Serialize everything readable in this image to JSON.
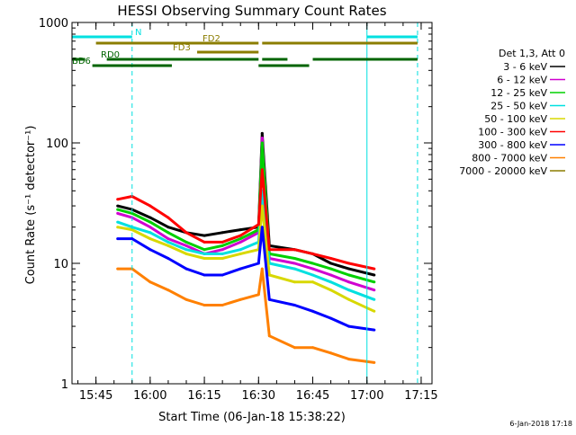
{
  "chart_data": {
    "type": "line",
    "title": "HESSI Observing Summary Count Rates",
    "xlabel": "Start Time (06-Jan-18 15:38:22)",
    "ylabel": "Count Rate (s⁻¹ detector⁻¹)",
    "x_scale": "time",
    "y_scale": "log",
    "xlim": [
      "15:38:22",
      "17:18:00"
    ],
    "ylim": [
      1,
      1000
    ],
    "x_ticks": [
      "15:45",
      "16:00",
      "16:15",
      "16:30",
      "16:45",
      "17:00",
      "17:15"
    ],
    "y_ticks": [
      "1",
      "10",
      "100",
      "1000"
    ],
    "grid": false,
    "legend_position": "right",
    "legend_header": "Det 1,3, Att 0",
    "timestamp": "6-Jan-2018 17:18",
    "series": [
      {
        "name": "3 - 6 keV",
        "color": "#000000",
        "x": [
          "15:51",
          "15:55",
          "16:00",
          "16:05",
          "16:10",
          "16:15",
          "16:20",
          "16:25",
          "16:30",
          "16:31",
          "16:33",
          "16:40",
          "16:45",
          "16:50",
          "16:55",
          "17:02"
        ],
        "y": [
          30,
          28,
          24,
          20,
          18,
          17,
          18,
          19,
          20,
          120,
          14,
          13,
          12,
          10,
          9,
          8
        ]
      },
      {
        "name": "6 - 12 keV",
        "color": "#d000d0",
        "x": [
          "15:51",
          "15:55",
          "16:00",
          "16:05",
          "16:10",
          "16:15",
          "16:20",
          "16:25",
          "16:30",
          "16:31",
          "16:33",
          "16:40",
          "16:45",
          "16:50",
          "16:55",
          "17:02"
        ],
        "y": [
          26,
          24,
          20,
          16,
          14,
          12,
          13,
          15,
          18,
          110,
          11,
          10,
          9,
          8,
          7,
          6
        ]
      },
      {
        "name": "12 - 25 keV",
        "color": "#00d000",
        "x": [
          "15:51",
          "15:55",
          "16:00",
          "16:05",
          "16:10",
          "16:15",
          "16:20",
          "16:25",
          "16:30",
          "16:31",
          "16:33",
          "16:40",
          "16:45",
          "16:50",
          "16:55",
          "17:02"
        ],
        "y": [
          28,
          26,
          22,
          18,
          15,
          13,
          14,
          16,
          19,
          100,
          12,
          11,
          10,
          9,
          8,
          7
        ]
      },
      {
        "name": "25 - 50 keV",
        "color": "#00e0e0",
        "x": [
          "15:51",
          "15:55",
          "16:00",
          "16:05",
          "16:10",
          "16:15",
          "16:20",
          "16:25",
          "16:30",
          "16:31",
          "16:33",
          "16:40",
          "16:45",
          "16:50",
          "16:55",
          "17:02"
        ],
        "y": [
          22,
          20,
          18,
          15,
          13,
          12,
          12,
          13,
          15,
          40,
          10,
          9,
          8,
          7,
          6,
          5
        ]
      },
      {
        "name": "50 - 100 keV",
        "color": "#d8d800",
        "x": [
          "15:51",
          "15:55",
          "16:00",
          "16:05",
          "16:10",
          "16:15",
          "16:20",
          "16:25",
          "16:30",
          "16:31",
          "16:33",
          "16:40",
          "16:45",
          "16:50",
          "16:55",
          "17:02"
        ],
        "y": [
          20,
          19,
          16,
          14,
          12,
          11,
          11,
          12,
          13,
          30,
          8,
          7,
          7,
          6,
          5,
          4
        ]
      },
      {
        "name": "100 - 300 keV",
        "color": "#ff0000",
        "x": [
          "15:51",
          "15:55",
          "16:00",
          "16:05",
          "16:10",
          "16:15",
          "16:20",
          "16:25",
          "16:30",
          "16:31",
          "16:33",
          "16:40",
          "16:45",
          "16:50",
          "16:55",
          "17:02"
        ],
        "y": [
          34,
          36,
          30,
          24,
          18,
          15,
          15,
          17,
          21,
          60,
          13,
          13,
          12,
          11,
          10,
          9
        ]
      },
      {
        "name": "300 - 800 keV",
        "color": "#0000ff",
        "x": [
          "15:51",
          "15:55",
          "16:00",
          "16:05",
          "16:10",
          "16:15",
          "16:20",
          "16:25",
          "16:30",
          "16:31",
          "16:33",
          "16:40",
          "16:45",
          "16:50",
          "16:55",
          "17:02"
        ],
        "y": [
          16,
          16,
          13,
          11,
          9,
          8,
          8,
          9,
          10,
          20,
          5,
          4.5,
          4,
          3.5,
          3,
          2.8
        ]
      },
      {
        "name": "800 - 7000 keV",
        "color": "#ff8000",
        "x": [
          "15:51",
          "15:55",
          "16:00",
          "16:05",
          "16:10",
          "16:15",
          "16:20",
          "16:25",
          "16:30",
          "16:31",
          "16:33",
          "16:40",
          "16:45",
          "16:50",
          "16:55",
          "17:02"
        ],
        "y": [
          9,
          9,
          7,
          6,
          5,
          4.5,
          4.5,
          5,
          5.5,
          9,
          2.5,
          2,
          2,
          1.8,
          1.6,
          1.5
        ]
      },
      {
        "name": "7000 - 20000 keV",
        "color": "#8b7d00",
        "x": [],
        "y": []
      }
    ],
    "flags": [
      {
        "name": "N",
        "color": "#00e0e0",
        "level": "top",
        "segments": [
          [
            "15:38:22",
            "15:55"
          ],
          [
            "17:00",
            "17:14"
          ]
        ]
      },
      {
        "name": "FD2",
        "color": "#8b7d00",
        "level": "upper",
        "segments": [
          [
            "15:45",
            "16:30"
          ],
          [
            "16:31",
            "17:14"
          ]
        ]
      },
      {
        "name": "FD3",
        "color": "#8b7d00",
        "level": "middle",
        "segments": [
          [
            "16:13",
            "16:30"
          ]
        ]
      },
      {
        "name": "RD0",
        "color": "#006400",
        "level": "lower",
        "segments": [
          [
            "15:38:22",
            "15:42"
          ],
          [
            "15:48",
            "16:30"
          ],
          [
            "16:31",
            "16:38"
          ],
          [
            "16:45",
            "17:14"
          ]
        ]
      },
      {
        "name": "BD6",
        "color": "#006400",
        "level": "bottom",
        "segments": [
          [
            "15:44",
            "16:06"
          ],
          [
            "16:30",
            "16:44"
          ]
        ]
      }
    ],
    "vertical_lines": [
      {
        "x": "15:38:22",
        "color": "#00e0e0",
        "style": "solid"
      },
      {
        "x": "15:55",
        "color": "#00e0e0",
        "style": "dashed"
      },
      {
        "x": "17:00",
        "color": "#00e0e0",
        "style": "solid"
      },
      {
        "x": "17:14",
        "color": "#00e0e0",
        "style": "dashed"
      }
    ]
  }
}
